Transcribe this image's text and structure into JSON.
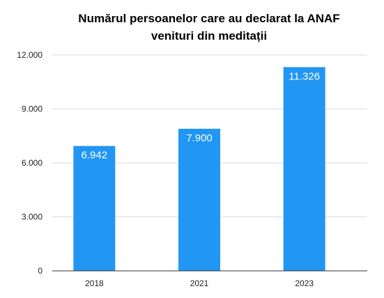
{
  "chart_data": {
    "type": "bar",
    "title_lines": [
      "Numărul persoanelor care au declarat la ANAF",
      "venituri din meditații"
    ],
    "categories": [
      "2018",
      "2021",
      "2023"
    ],
    "values": [
      6942,
      7900,
      11326
    ],
    "data_labels": [
      "6.942",
      "7.900",
      "11.326"
    ],
    "y_ticks": [
      0,
      3000,
      6000,
      9000,
      12000
    ],
    "y_tick_labels": [
      "0",
      "3.000",
      "6.000",
      "9.000",
      "12.000"
    ],
    "ylim": [
      0,
      12000
    ],
    "xlabel": "",
    "ylabel": "",
    "grid": true,
    "legend": "none",
    "bar_color": "#2196f3",
    "grid_color": "#d9d9d9",
    "axis_color": "#333333"
  }
}
